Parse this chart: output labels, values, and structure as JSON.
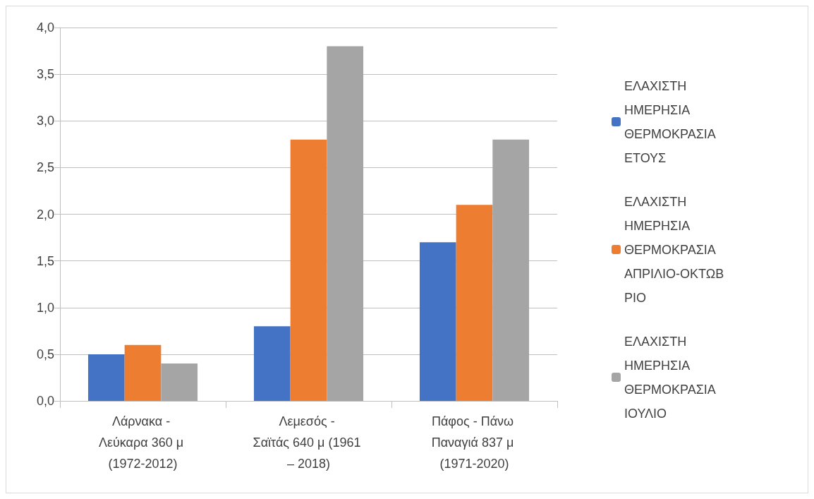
{
  "chart_data": {
    "type": "bar",
    "categories": [
      "Λάρνακα - Λεύκαρα 360 μ (1972-2012)",
      "Λεμεσός - Σαϊτάς 640 μ (1961 – 2018)",
      "Πάφος - Πάνω Παναγιά 837 μ (1971-2020)"
    ],
    "series": [
      {
        "name": "ΕΛΑΧΙΣΤΗ ΗΜΕΡΗΣΙΑ ΘΕΡΜΟΚΡΑΣΙΑ ΕΤΟΥΣ",
        "color": "#4472c4",
        "values": [
          0.5,
          0.8,
          1.7
        ]
      },
      {
        "name": "ΕΛΑΧΙΣΤΗ ΗΜΕΡΗΣΙΑ ΘΕΡΜΟΚΡΑΣΙΑ ΑΠΡΙΛΙΟ-ΟΚΤΩΒΡΙΟ",
        "color": "#ed7d31",
        "values": [
          0.6,
          2.8,
          2.1
        ]
      },
      {
        "name": "ΕΛΑΧΙΣΤΗ ΗΜΕΡΗΣΙΑ ΘΕΡΜΟΚΡΑΣΙΑ ΙΟΥΛΙΟ",
        "color": "#a5a5a5",
        "values": [
          0.4,
          3.8,
          2.8
        ]
      }
    ],
    "ylim": [
      0,
      4
    ],
    "yticks": [
      {
        "value": 0,
        "label": "0,0"
      },
      {
        "value": 0.5,
        "label": "0,5"
      },
      {
        "value": 1,
        "label": "1,0"
      },
      {
        "value": 1.5,
        "label": "1,5"
      },
      {
        "value": 2,
        "label": "2,0"
      },
      {
        "value": 2.5,
        "label": "2,5"
      },
      {
        "value": 3,
        "label": "3,0"
      },
      {
        "value": 3.5,
        "label": "3,5"
      },
      {
        "value": 4,
        "label": "4,0"
      }
    ],
    "grid": "y",
    "legend": "right"
  }
}
